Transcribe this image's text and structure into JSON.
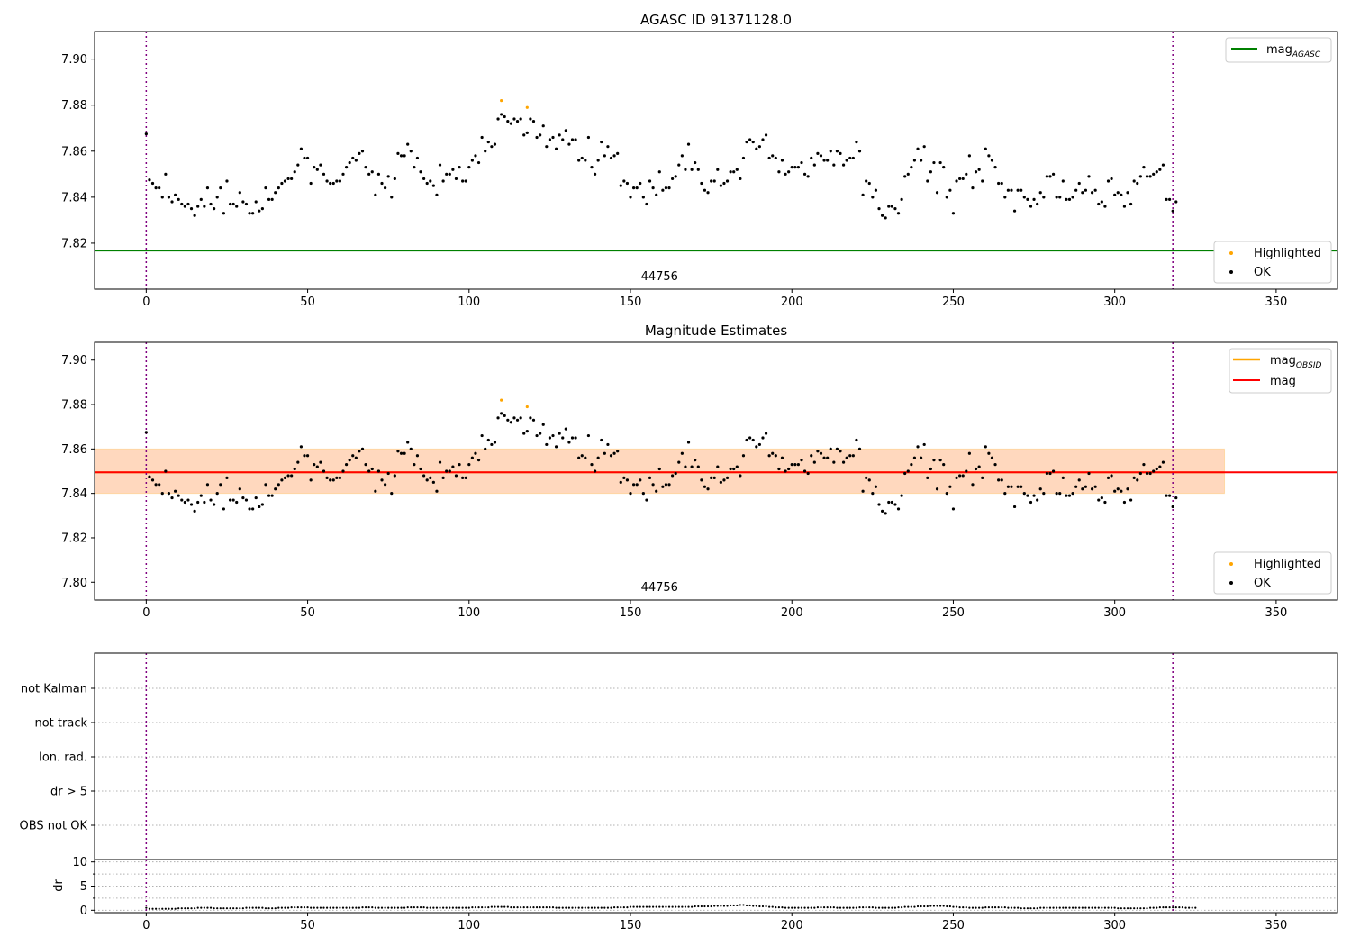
{
  "chart_data": [
    {
      "type": "scatter",
      "title": "AGASC ID 91371128.0",
      "xlabel": "",
      "ylabel": "",
      "xlim": [
        -16,
        369
      ],
      "ylim": [
        7.8,
        7.912
      ],
      "x_ticks": [
        0,
        50,
        100,
        150,
        200,
        250,
        300,
        350
      ],
      "y_ticks": [
        7.82,
        7.84,
        7.86,
        7.88,
        7.9
      ],
      "mag_agasc": 7.8168,
      "mag_agasc_color": "#008000",
      "obsid_boundaries": [
        0,
        318
      ],
      "boundary_color": "#800080",
      "obsid_label": "44756",
      "obsid_label_x": 159,
      "highlighted_points": [
        [
          110,
          7.882
        ],
        [
          118,
          7.879
        ]
      ],
      "highlighted_color": "#ffa500",
      "ok_color": "#000000",
      "legend_lines": [
        {
          "label": "mag",
          "subscript": "AGASC",
          "color": "#008000"
        }
      ],
      "legend_points": [
        {
          "label": "Highlighted",
          "color": "#ffa500"
        },
        {
          "label": "OK",
          "color": "#000000"
        }
      ]
    },
    {
      "type": "scatter",
      "title": "Magnitude Estimates",
      "xlabel": "",
      "ylabel": "",
      "xlim": [
        -16,
        369
      ],
      "ylim": [
        7.792,
        7.908
      ],
      "x_ticks": [
        0,
        50,
        100,
        150,
        200,
        250,
        300,
        350
      ],
      "y_ticks": [
        7.8,
        7.82,
        7.84,
        7.86,
        7.88,
        7.9
      ],
      "mag": 7.8495,
      "mag_color": "#ff0000",
      "mag_band": [
        7.84,
        7.86
      ],
      "mag_band_x_end": 334,
      "mag_obsid": 7.8495,
      "mag_obsid_color": "#ffa500",
      "mag_obsid_band": [
        7.84,
        7.86
      ],
      "obsid_boundaries": [
        0,
        318
      ],
      "obsid_label": "44756",
      "obsid_label_x": 159,
      "highlighted_points": [
        [
          110,
          7.882
        ],
        [
          118,
          7.879
        ]
      ],
      "legend_lines": [
        {
          "label": "mag",
          "subscript": "OBSID",
          "color": "#ffa500"
        },
        {
          "label": "mag",
          "subscript": "",
          "color": "#ff0000"
        }
      ],
      "legend_points": [
        {
          "label": "Highlighted",
          "color": "#ffa500"
        },
        {
          "label": "OK",
          "color": "#000000"
        }
      ]
    },
    {
      "type": "scatter",
      "title": "",
      "xlim": [
        -16,
        369
      ],
      "categories": [
        "OBS not OK",
        "dr > 5",
        "Ion. rad.",
        "not track",
        "not Kalman"
      ],
      "flagged_points": [],
      "obsid_boundaries": [
        0,
        318
      ]
    },
    {
      "type": "scatter",
      "title": "",
      "xlabel": "",
      "ylabel": "dr",
      "xlim": [
        -16,
        369
      ],
      "ylim": [
        -0.5,
        10.5
      ],
      "x_ticks": [
        0,
        50,
        100,
        150,
        200,
        250,
        300,
        350
      ],
      "y_ticks": [
        0,
        5,
        10
      ],
      "obsid_boundaries": [
        0,
        318
      ]
    }
  ],
  "mag_series": {
    "x_start": 0,
    "x_step": 1,
    "values": [
      7.8675,
      7.8475,
      7.846,
      7.844,
      7.844,
      7.84,
      7.85,
      7.84,
      7.838,
      7.841,
      7.839,
      7.837,
      7.836,
      7.837,
      7.835,
      7.832,
      7.836,
      7.839,
      7.836,
      7.844,
      7.837,
      7.835,
      7.84,
      7.844,
      7.833,
      7.847,
      7.837,
      7.837,
      7.836,
      7.842,
      7.838,
      7.837,
      7.833,
      7.833,
      7.838,
      7.834,
      7.835,
      7.844,
      7.839,
      7.839,
      7.842,
      7.844,
      7.846,
      7.847,
      7.848,
      7.848,
      7.851,
      7.854,
      7.861,
      7.857,
      7.857,
      7.846,
      7.853,
      7.852,
      7.854,
      7.85,
      7.847,
      7.846,
      7.846,
      7.847,
      7.847,
      7.85,
      7.853,
      7.855,
      7.857,
      7.856,
      7.859,
      7.86,
      7.853,
      7.85,
      7.851,
      7.841,
      7.85,
      7.846,
      7.844,
      7.849,
      7.84,
      7.848,
      7.859,
      7.858,
      7.858,
      7.863,
      7.86,
      7.853,
      7.857,
      7.851,
      7.848,
      7.846,
      7.847,
      7.845,
      7.841,
      7.854,
      7.847,
      7.85,
      7.85,
      7.852,
      7.848,
      7.853,
      7.847,
      7.847,
      7.853,
      7.856,
      7.858,
      7.855,
      7.866,
      7.86,
      7.864,
      7.862,
      7.863,
      7.874,
      7.876,
      7.875,
      7.873,
      7.872,
      7.874,
      7.873,
      7.874,
      7.867,
      7.868,
      7.874,
      7.873,
      7.866,
      7.867,
      7.871,
      7.862,
      7.865,
      7.866,
      7.861,
      7.867,
      7.865,
      7.869,
      7.863,
      7.865,
      7.865,
      7.856,
      7.857,
      7.856,
      7.866,
      7.853,
      7.85,
      7.856,
      7.864,
      7.858,
      7.862,
      7.857,
      7.858,
      7.859,
      7.845,
      7.847,
      7.846,
      7.84,
      7.844,
      7.844,
      7.846,
      7.84,
      7.837,
      7.847,
      7.844,
      7.841,
      7.851,
      7.843,
      7.844,
      7.844,
      7.848,
      7.849,
      7.854,
      7.858,
      7.852,
      7.863,
      7.852,
      7.855,
      7.852,
      7.846,
      7.843,
      7.842,
      7.847,
      7.847,
      7.852,
      7.845,
      7.846,
      7.847,
      7.851,
      7.851,
      7.852,
      7.848,
      7.857,
      7.864,
      7.865,
      7.864,
      7.861,
      7.862,
      7.865,
      7.867,
      7.857,
      7.858,
      7.857,
      7.851,
      7.856,
      7.85,
      7.851,
      7.853,
      7.853,
      7.853,
      7.855,
      7.85,
      7.849,
      7.857,
      7.854,
      7.859,
      7.858,
      7.856,
      7.856,
      7.86,
      7.854,
      7.86,
      7.859,
      7.854,
      7.856,
      7.857,
      7.857,
      7.864,
      7.86,
      7.841,
      7.847,
      7.846,
      7.84,
      7.843,
      7.835,
      7.832,
      7.831,
      7.836,
      7.836,
      7.835,
      7.833,
      7.839,
      7.849,
      7.85,
      7.853,
      7.856,
      7.861,
      7.856,
      7.862,
      7.847,
      7.851,
      7.855,
      7.842,
      7.855,
      7.853,
      7.84,
      7.843,
      7.833,
      7.847,
      7.848,
      7.848,
      7.85,
      7.858,
      7.844,
      7.851,
      7.852,
      7.847,
      7.861,
      7.858,
      7.856,
      7.853,
      7.846,
      7.846,
      7.84,
      7.843,
      7.843,
      7.834,
      7.843,
      7.843,
      7.84,
      7.839,
      7.836,
      7.839,
      7.837,
      7.842,
      7.84,
      7.849,
      7.849,
      7.85,
      7.84,
      7.84,
      7.847,
      7.839,
      7.839,
      7.84,
      7.843,
      7.846,
      7.842,
      7.843,
      7.849,
      7.842,
      7.843,
      7.837,
      7.838,
      7.836,
      7.847,
      7.848,
      7.841,
      7.842,
      7.841,
      7.836,
      7.842,
      7.837,
      7.847,
      7.846,
      7.849,
      7.853,
      7.849,
      7.849,
      7.85,
      7.851,
      7.852,
      7.854,
      7.839,
      7.839,
      7.834,
      7.838
    ],
    "color": "#000000"
  },
  "dr_series": {
    "x_start": 0,
    "x_step": 1,
    "values": [
      0.5,
      0.3,
      0.3,
      0.3,
      0.3,
      0.3,
      0.3,
      0.3,
      0.3,
      0.3,
      0.4,
      0.4,
      0.4,
      0.4,
      0.4,
      0.4,
      0.5,
      0.5,
      0.5,
      0.5,
      0.5,
      0.4,
      0.4,
      0.4,
      0.4,
      0.4,
      0.4,
      0.4,
      0.4,
      0.4,
      0.4,
      0.5,
      0.5,
      0.5,
      0.5,
      0.5,
      0.5,
      0.4,
      0.4,
      0.4,
      0.4,
      0.5,
      0.5,
      0.5,
      0.5,
      0.6,
      0.6,
      0.6,
      0.6,
      0.6,
      0.6,
      0.5,
      0.5,
      0.5,
      0.5,
      0.5,
      0.5,
      0.5,
      0.5,
      0.5,
      0.5,
      0.5,
      0.5,
      0.5,
      0.5,
      0.5,
      0.5,
      0.6,
      0.6,
      0.6,
      0.6,
      0.5,
      0.5,
      0.5,
      0.5,
      0.5,
      0.5,
      0.5,
      0.5,
      0.5,
      0.5,
      0.6,
      0.6,
      0.6,
      0.6,
      0.6,
      0.6,
      0.5,
      0.5,
      0.5,
      0.5,
      0.5,
      0.5,
      0.5,
      0.5,
      0.5,
      0.5,
      0.5,
      0.5,
      0.5,
      0.5,
      0.6,
      0.6,
      0.6,
      0.6,
      0.6,
      0.6,
      0.7,
      0.7,
      0.7,
      0.7,
      0.7,
      0.7,
      0.6,
      0.6,
      0.6,
      0.6,
      0.6,
      0.6,
      0.6,
      0.6,
      0.6,
      0.6,
      0.6,
      0.6,
      0.6,
      0.6,
      0.5,
      0.5,
      0.5,
      0.5,
      0.5,
      0.5,
      0.5,
      0.5,
      0.5,
      0.5,
      0.5,
      0.5,
      0.5,
      0.5,
      0.5,
      0.5,
      0.5,
      0.5,
      0.6,
      0.6,
      0.6,
      0.6,
      0.6,
      0.7,
      0.7,
      0.7,
      0.7,
      0.7,
      0.7,
      0.7,
      0.7,
      0.7,
      0.7,
      0.7,
      0.7,
      0.7,
      0.7,
      0.7,
      0.7,
      0.7,
      0.7,
      0.7,
      0.7,
      0.8,
      0.8,
      0.8,
      0.8,
      0.8,
      0.8,
      0.9,
      0.9,
      0.9,
      0.9,
      0.9,
      1.0,
      1.0,
      1.0,
      1.1,
      1.1,
      1.0,
      1.0,
      0.9,
      0.9,
      0.8,
      0.8,
      0.8,
      0.7,
      0.7,
      0.6,
      0.6,
      0.6,
      0.5,
      0.5,
      0.5,
      0.5,
      0.5,
      0.5,
      0.5,
      0.5,
      0.5,
      0.5,
      0.6,
      0.6,
      0.6,
      0.6,
      0.6,
      0.6,
      0.5,
      0.5,
      0.5,
      0.5,
      0.5,
      0.5,
      0.5,
      0.6,
      0.6,
      0.6,
      0.6,
      0.6,
      0.5,
      0.5,
      0.5,
      0.5,
      0.5,
      0.5,
      0.5,
      0.6,
      0.6,
      0.7,
      0.7,
      0.7,
      0.7,
      0.8,
      0.8,
      0.8,
      0.8,
      0.9,
      0.9,
      0.9,
      0.9,
      0.9,
      0.8,
      0.8,
      0.7,
      0.7,
      0.6,
      0.6,
      0.6,
      0.5,
      0.5,
      0.5,
      0.5,
      0.5,
      0.6,
      0.6,
      0.6,
      0.6,
      0.6,
      0.6,
      0.6,
      0.5,
      0.5,
      0.5,
      0.5,
      0.4,
      0.4,
      0.4,
      0.4,
      0.4,
      0.4,
      0.5,
      0.5,
      0.5,
      0.5,
      0.5,
      0.5,
      0.5,
      0.5,
      0.5,
      0.5,
      0.5,
      0.5,
      0.5,
      0.5,
      0.5,
      0.5,
      0.5,
      0.5,
      0.5,
      0.5,
      0.5,
      0.5,
      0.5,
      0.5,
      0.4,
      0.4,
      0.4,
      0.4,
      0.4,
      0.4,
      0.4,
      0.4,
      0.4,
      0.4,
      0.5,
      0.5,
      0.5,
      0.6,
      0.6,
      0.6,
      0.6,
      0.6,
      0.6,
      0.6,
      0.6,
      0.5,
      0.5,
      0.5,
      0.5
    ],
    "color": "#000000"
  }
}
